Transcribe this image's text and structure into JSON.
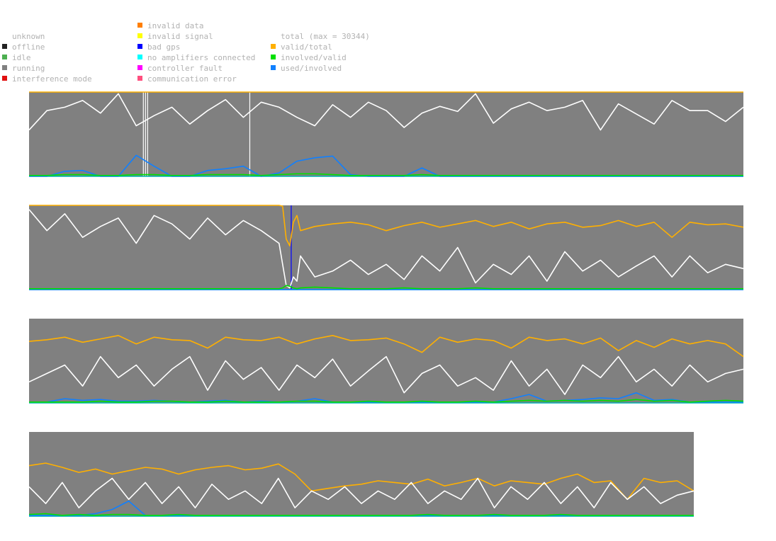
{
  "legend": {
    "status_items": [
      {
        "label": "unknown",
        "color": ""
      },
      {
        "label": "offline",
        "color": "#222222"
      },
      {
        "label": "idle",
        "color": "#4caf50"
      },
      {
        "label": "running",
        "color": "#808080"
      },
      {
        "label": "interference mode",
        "color": "#e01010"
      }
    ],
    "error_items": [
      {
        "label": "invalid data",
        "color": "#ff7f00"
      },
      {
        "label": "invalid signal",
        "color": "#ffff00"
      },
      {
        "label": "bad gps",
        "color": "#0000ff"
      },
      {
        "label": "no amplifiers connected",
        "color": "#00ffff"
      },
      {
        "label": "controller fault",
        "color": "#ff00ff"
      },
      {
        "label": "communication error",
        "color": "#ff4f7f"
      }
    ],
    "series_items": [
      {
        "label": "total (max = 30344)",
        "color": ""
      },
      {
        "label": "valid/total",
        "color": "#ffb000"
      },
      {
        "label": "involved/valid",
        "color": "#00e000"
      },
      {
        "label": "used/involved",
        "color": "#1080ff"
      }
    ]
  },
  "colors": {
    "background": "#808080",
    "total": "#ffffff",
    "valid_total": "#ffb000",
    "involved_valid": "#00e000",
    "used_involved": "#1080ff",
    "bad_gps": "#0000ff",
    "baseline": "#00b0b0"
  },
  "chart_data": [
    {
      "type": "line",
      "title": "",
      "xlabel": "",
      "ylabel": "",
      "ylim": [
        0,
        1
      ],
      "x": [
        0,
        0.025,
        0.05,
        0.075,
        0.1,
        0.125,
        0.15,
        0.175,
        0.2,
        0.225,
        0.25,
        0.275,
        0.3,
        0.325,
        0.35,
        0.375,
        0.4,
        0.425,
        0.45,
        0.475,
        0.5,
        0.525,
        0.55,
        0.575,
        0.6,
        0.625,
        0.65,
        0.675,
        0.7,
        0.725,
        0.75,
        0.775,
        0.8,
        0.825,
        0.85,
        0.875,
        0.9,
        0.925,
        0.95,
        0.975,
        1
      ],
      "series": [
        {
          "key": "total",
          "values": [
            0.55,
            0.78,
            0.82,
            0.9,
            0.75,
            0.98,
            0.6,
            0.72,
            0.82,
            0.62,
            0.78,
            0.91,
            0.7,
            0.88,
            0.82,
            0.7,
            0.6,
            0.85,
            0.7,
            0.88,
            0.78,
            0.58,
            0.75,
            0.83,
            0.77,
            0.98,
            0.63,
            0.8,
            0.88,
            0.78,
            0.82,
            0.9,
            0.55,
            0.86,
            0.74,
            0.62,
            0.9,
            0.78,
            0.78,
            0.65,
            0.82
          ]
        },
        {
          "key": "valid_total",
          "values": [
            1,
            1,
            1,
            1,
            1,
            1,
            1,
            1,
            1,
            1,
            1,
            1,
            1,
            1,
            1,
            1,
            1,
            1,
            1,
            1,
            1,
            1,
            1,
            1,
            1,
            1,
            1,
            1,
            1,
            1,
            1,
            1,
            1,
            1,
            1,
            1,
            1,
            1,
            1,
            1,
            1
          ]
        },
        {
          "key": "used_involved",
          "values": [
            0,
            0,
            0.06,
            0.07,
            0,
            0,
            0.25,
            0.12,
            0,
            0,
            0.07,
            0.09,
            0.12,
            0,
            0.04,
            0.18,
            0.22,
            0.24,
            0.02,
            0,
            0,
            0,
            0.1,
            0,
            0,
            0,
            0,
            0,
            0,
            0,
            0,
            0,
            0,
            0,
            0,
            0,
            0,
            0,
            0,
            0,
            0
          ]
        },
        {
          "key": "involved_valid",
          "values": [
            0.01,
            0.01,
            0.02,
            0.02,
            0.01,
            0.01,
            0.02,
            0.02,
            0.01,
            0.01,
            0.02,
            0.02,
            0.02,
            0.01,
            0.02,
            0.03,
            0.03,
            0.02,
            0.01,
            0.01,
            0.01,
            0.01,
            0.02,
            0.01,
            0.01,
            0.01,
            0.01,
            0.01,
            0.01,
            0.01,
            0.01,
            0.01,
            0.01,
            0.01,
            0.01,
            0.01,
            0.01,
            0.01,
            0.01,
            0.01,
            0.01
          ]
        }
      ],
      "markers": [
        {
          "x": 0.16,
          "color": "#ffffff"
        },
        {
          "x": 0.163,
          "color": "#ffffff"
        },
        {
          "x": 0.166,
          "color": "#ffffff"
        },
        {
          "x": 0.309,
          "color": "#ffffff"
        }
      ]
    },
    {
      "type": "line",
      "title": "",
      "xlabel": "",
      "ylabel": "",
      "ylim": [
        0,
        1
      ],
      "x": [
        0,
        0.025,
        0.05,
        0.075,
        0.1,
        0.125,
        0.15,
        0.175,
        0.2,
        0.225,
        0.25,
        0.275,
        0.3,
        0.325,
        0.35,
        0.355,
        0.36,
        0.365,
        0.37,
        0.375,
        0.38,
        0.4,
        0.425,
        0.45,
        0.475,
        0.5,
        0.525,
        0.55,
        0.575,
        0.6,
        0.625,
        0.65,
        0.675,
        0.7,
        0.725,
        0.75,
        0.775,
        0.8,
        0.825,
        0.85,
        0.875,
        0.9,
        0.925,
        0.95,
        0.975,
        1
      ],
      "series": [
        {
          "key": "total",
          "values": [
            0.95,
            0.7,
            0.9,
            0.62,
            0.75,
            0.85,
            0.55,
            0.88,
            0.78,
            0.6,
            0.85,
            0.65,
            0.82,
            0.7,
            0.55,
            0.3,
            0.05,
            0.02,
            0.15,
            0.1,
            0.4,
            0.15,
            0.22,
            0.35,
            0.18,
            0.3,
            0.12,
            0.4,
            0.22,
            0.5,
            0.08,
            0.3,
            0.18,
            0.4,
            0.1,
            0.45,
            0.22,
            0.35,
            0.15,
            0.28,
            0.4,
            0.15,
            0.4,
            0.2,
            0.3,
            0.25
          ]
        },
        {
          "key": "valid_total",
          "values": [
            1,
            1,
            1,
            1,
            1,
            1,
            1,
            1,
            1,
            1,
            1,
            1,
            1,
            1,
            1,
            0.99,
            0.6,
            0.52,
            0.8,
            0.88,
            0.7,
            0.75,
            0.78,
            0.8,
            0.77,
            0.7,
            0.76,
            0.8,
            0.74,
            0.78,
            0.82,
            0.75,
            0.8,
            0.72,
            0.78,
            0.8,
            0.74,
            0.76,
            0.82,
            0.75,
            0.8,
            0.62,
            0.8,
            0.77,
            0.78,
            0.74
          ]
        },
        {
          "key": "used_involved",
          "values": [
            0,
            0,
            0,
            0,
            0,
            0,
            0,
            0,
            0,
            0,
            0,
            0,
            0,
            0,
            0,
            0,
            0,
            0,
            0,
            0,
            0,
            0,
            0,
            0,
            0,
            0,
            0,
            0,
            0,
            0,
            0,
            0,
            0,
            0,
            0,
            0,
            0,
            0,
            0,
            0,
            0,
            0,
            0,
            0,
            0,
            0
          ]
        },
        {
          "key": "involved_valid",
          "values": [
            0.01,
            0.01,
            0.01,
            0.01,
            0.01,
            0.01,
            0.01,
            0.01,
            0.01,
            0.01,
            0.01,
            0.01,
            0.01,
            0.01,
            0.01,
            0.02,
            0.05,
            0.04,
            0.02,
            0.01,
            0.02,
            0.03,
            0.02,
            0.01,
            0.01,
            0.01,
            0.02,
            0.01,
            0.01,
            0.01,
            0.02,
            0.01,
            0.01,
            0.01,
            0.01,
            0.01,
            0.01,
            0.01,
            0.01,
            0.01,
            0.01,
            0.01,
            0.01,
            0.01,
            0.01,
            0.01
          ]
        }
      ],
      "markers": [
        {
          "x": 0.367,
          "color": "#0000ff"
        }
      ]
    },
    {
      "type": "line",
      "title": "",
      "xlabel": "",
      "ylabel": "",
      "ylim": [
        0,
        1
      ],
      "x": [
        0,
        0.025,
        0.05,
        0.075,
        0.1,
        0.125,
        0.15,
        0.175,
        0.2,
        0.225,
        0.25,
        0.275,
        0.3,
        0.325,
        0.35,
        0.375,
        0.4,
        0.425,
        0.45,
        0.475,
        0.5,
        0.525,
        0.55,
        0.575,
        0.6,
        0.625,
        0.65,
        0.675,
        0.7,
        0.725,
        0.75,
        0.775,
        0.8,
        0.825,
        0.85,
        0.875,
        0.9,
        0.925,
        0.95,
        0.975,
        1
      ],
      "series": [
        {
          "key": "total",
          "values": [
            0.25,
            0.35,
            0.45,
            0.2,
            0.55,
            0.3,
            0.45,
            0.2,
            0.4,
            0.55,
            0.15,
            0.5,
            0.28,
            0.42,
            0.15,
            0.45,
            0.3,
            0.52,
            0.2,
            0.38,
            0.55,
            0.12,
            0.35,
            0.45,
            0.2,
            0.3,
            0.15,
            0.5,
            0.2,
            0.4,
            0.1,
            0.45,
            0.3,
            0.55,
            0.25,
            0.4,
            0.2,
            0.45,
            0.25,
            0.35,
            0.4
          ]
        },
        {
          "key": "valid_total",
          "values": [
            0.73,
            0.75,
            0.78,
            0.72,
            0.76,
            0.8,
            0.7,
            0.78,
            0.75,
            0.74,
            0.65,
            0.78,
            0.75,
            0.74,
            0.78,
            0.7,
            0.76,
            0.8,
            0.74,
            0.75,
            0.77,
            0.7,
            0.6,
            0.78,
            0.72,
            0.76,
            0.74,
            0.65,
            0.78,
            0.74,
            0.76,
            0.7,
            0.77,
            0.62,
            0.74,
            0.66,
            0.76,
            0.7,
            0.74,
            0.7,
            0.55
          ]
        },
        {
          "key": "used_involved",
          "values": [
            0.01,
            0.01,
            0.05,
            0.03,
            0.04,
            0.02,
            0.02,
            0.03,
            0.02,
            0.01,
            0.02,
            0.03,
            0.01,
            0.02,
            0.01,
            0.02,
            0.05,
            0.01,
            0.01,
            0.01,
            0.01,
            0.01,
            0.01,
            0.01,
            0.01,
            0.01,
            0.01,
            0.05,
            0.1,
            0.02,
            0.03,
            0.04,
            0.06,
            0.05,
            0.12,
            0.03,
            0.04,
            0.01,
            0.01,
            0.01,
            0.01
          ]
        },
        {
          "key": "involved_valid",
          "values": [
            0.01,
            0.01,
            0.01,
            0.01,
            0.02,
            0.01,
            0.01,
            0.02,
            0.02,
            0.01,
            0.01,
            0.02,
            0.01,
            0.01,
            0.01,
            0.02,
            0.02,
            0.01,
            0.01,
            0.02,
            0.01,
            0.01,
            0.02,
            0.01,
            0.01,
            0.02,
            0.01,
            0.02,
            0.03,
            0.02,
            0.03,
            0.02,
            0.03,
            0.02,
            0.04,
            0.02,
            0.03,
            0.01,
            0.02,
            0.03,
            0.02
          ]
        }
      ],
      "markers": []
    },
    {
      "type": "line",
      "title": "",
      "xlabel": "",
      "ylabel": "",
      "ylim": [
        0,
        1
      ],
      "x": [
        0,
        0.025,
        0.05,
        0.075,
        0.1,
        0.125,
        0.15,
        0.175,
        0.2,
        0.225,
        0.25,
        0.275,
        0.3,
        0.325,
        0.35,
        0.375,
        0.4,
        0.425,
        0.45,
        0.475,
        0.5,
        0.525,
        0.55,
        0.575,
        0.6,
        0.625,
        0.65,
        0.675,
        0.7,
        0.725,
        0.75,
        0.775,
        0.8,
        0.825,
        0.85,
        0.875,
        0.9,
        0.925,
        0.95,
        0.975,
        1
      ],
      "series": [
        {
          "key": "total",
          "values": [
            0.35,
            0.15,
            0.4,
            0.1,
            0.3,
            0.45,
            0.2,
            0.4,
            0.15,
            0.35,
            0.1,
            0.38,
            0.2,
            0.3,
            0.15,
            0.45,
            0.1,
            0.3,
            0.2,
            0.35,
            0.15,
            0.3,
            0.2,
            0.4,
            0.15,
            0.3,
            0.2,
            0.45,
            0.1,
            0.35,
            0.2,
            0.4,
            0.15,
            0.35,
            0.1,
            0.4,
            0.2,
            0.35,
            0.15,
            0.25,
            0.3
          ]
        },
        {
          "key": "valid_total",
          "values": [
            0.6,
            0.63,
            0.58,
            0.52,
            0.56,
            0.5,
            0.54,
            0.58,
            0.56,
            0.5,
            0.55,
            0.58,
            0.6,
            0.55,
            0.57,
            0.62,
            0.5,
            0.3,
            0.33,
            0.36,
            0.38,
            0.42,
            0.4,
            0.38,
            0.44,
            0.36,
            0.4,
            0.45,
            0.36,
            0.42,
            0.4,
            0.38,
            0.45,
            0.5,
            0.4,
            0.42,
            0.2,
            0.45,
            0.4,
            0.42,
            0.3
          ]
        },
        {
          "key": "used_involved",
          "values": [
            0.01,
            0.01,
            0.01,
            0.01,
            0.03,
            0.08,
            0.18,
            0.01,
            0.01,
            0.01,
            0.01,
            0.01,
            0.01,
            0.01,
            0.01,
            0.01,
            0.01,
            0.01,
            0.01,
            0.01,
            0.01,
            0.01,
            0.01,
            0.01,
            0.01,
            0.01,
            0.01,
            0.01,
            0.01,
            0.01,
            0.01,
            0.01,
            0.01,
            0.01,
            0.01,
            0.01,
            0.01,
            0.01,
            0.01,
            0.01,
            0.01
          ]
        },
        {
          "key": "involved_valid",
          "values": [
            0.02,
            0.03,
            0.01,
            0.02,
            0.01,
            0.02,
            0.02,
            0.01,
            0.01,
            0.02,
            0.01,
            0.01,
            0.01,
            0.01,
            0.01,
            0.01,
            0.01,
            0.01,
            0.01,
            0.01,
            0.01,
            0.01,
            0.01,
            0.01,
            0.02,
            0.01,
            0.01,
            0.01,
            0.02,
            0.01,
            0.01,
            0.01,
            0.02,
            0.01,
            0.01,
            0.01,
            0.01,
            0.01,
            0.01,
            0.01,
            0.01
          ]
        }
      ],
      "markers": []
    }
  ]
}
